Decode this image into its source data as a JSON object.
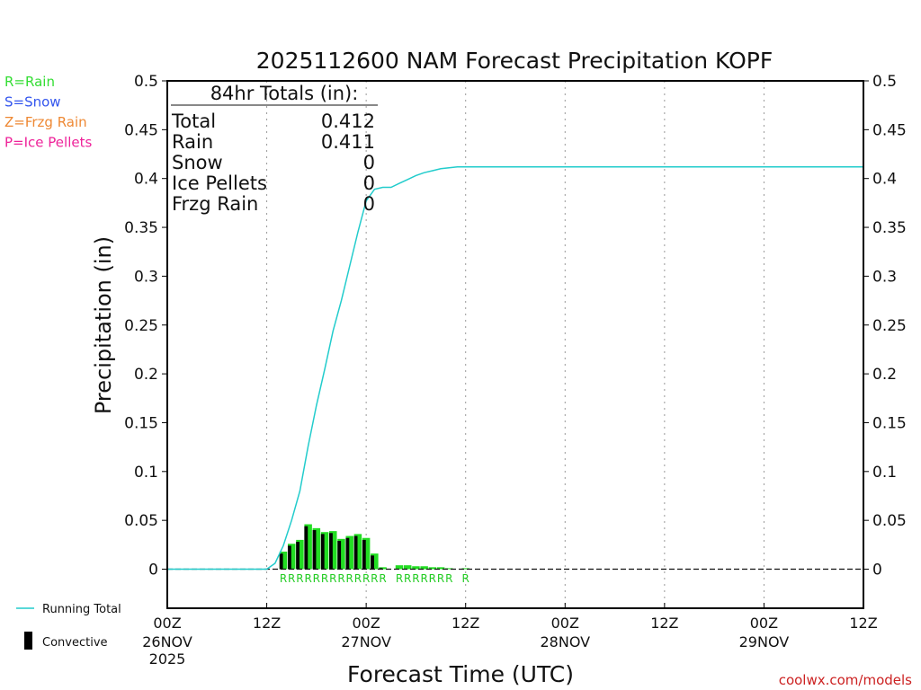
{
  "chart_data": {
    "type": "bar",
    "title": "2025112600 NAM Forecast Precipitation KOPF",
    "ylabel": "Precipitation (in)",
    "xlabel": "Forecast Time (UTC)",
    "ylim": [
      -0.04,
      0.5
    ],
    "xlim_hours": [
      0,
      84
    ],
    "y_ticks": [
      {
        "value": 0.5,
        "label": "0.5"
      },
      {
        "value": 0.45,
        "label": "0.45"
      },
      {
        "value": 0.4,
        "label": "0.4"
      },
      {
        "value": 0.35,
        "label": "0.35"
      },
      {
        "value": 0.3,
        "label": "0.3"
      },
      {
        "value": 0.25,
        "label": "0.25"
      },
      {
        "value": 0.2,
        "label": "0.2"
      },
      {
        "value": 0.15,
        "label": "0.15"
      },
      {
        "value": 0.1,
        "label": "0.1"
      },
      {
        "value": 0.05,
        "label": "0.05"
      },
      {
        "value": 0,
        "label": "0"
      }
    ],
    "x_ticks": [
      {
        "hour": 0,
        "label": "00Z",
        "date": "26NOV",
        "year": "2025"
      },
      {
        "hour": 12,
        "label": "12Z",
        "date": "",
        "year": ""
      },
      {
        "hour": 24,
        "label": "00Z",
        "date": "27NOV",
        "year": ""
      },
      {
        "hour": 36,
        "label": "12Z",
        "date": "",
        "year": ""
      },
      {
        "hour": 48,
        "label": "00Z",
        "date": "28NOV",
        "year": ""
      },
      {
        "hour": 60,
        "label": "12Z",
        "date": "",
        "year": ""
      },
      {
        "hour": 72,
        "label": "00Z",
        "date": "29NOV",
        "year": ""
      },
      {
        "hour": 84,
        "label": "12Z",
        "date": "",
        "year": ""
      }
    ],
    "totals_box": {
      "header": "84hr Totals (in):",
      "rows": [
        {
          "label": "Total",
          "value": "0.412"
        },
        {
          "label": "Rain",
          "value": "0.411"
        },
        {
          "label": "Snow",
          "value": "0"
        },
        {
          "label": "Ice Pellets",
          "value": "0"
        },
        {
          "label": "Frzg Rain",
          "value": "0"
        }
      ]
    },
    "type_legend": [
      {
        "label": "R=Rain",
        "color": "#33dd33"
      },
      {
        "label": "S=Snow",
        "color": "#3355ee"
      },
      {
        "label": "Z=Frzg Rain",
        "color": "#ee8833"
      },
      {
        "label": "P=Ice Pellets",
        "color": "#ee2299"
      }
    ],
    "series_legend": [
      {
        "label": "Running Total",
        "color": "#22cccc"
      },
      {
        "label": "Convective",
        "color": "#000000"
      }
    ],
    "precip_bars": [
      {
        "hour": 14,
        "value": 0.018,
        "convective": 0.016
      },
      {
        "hour": 15,
        "value": 0.026,
        "convective": 0.024
      },
      {
        "hour": 16,
        "value": 0.03,
        "convective": 0.028
      },
      {
        "hour": 17,
        "value": 0.046,
        "convective": 0.044
      },
      {
        "hour": 18,
        "value": 0.042,
        "convective": 0.04
      },
      {
        "hour": 19,
        "value": 0.038,
        "convective": 0.036
      },
      {
        "hour": 20,
        "value": 0.039,
        "convective": 0.037
      },
      {
        "hour": 21,
        "value": 0.031,
        "convective": 0.029
      },
      {
        "hour": 22,
        "value": 0.034,
        "convective": 0.032
      },
      {
        "hour": 23,
        "value": 0.036,
        "convective": 0.034
      },
      {
        "hour": 24,
        "value": 0.032,
        "convective": 0.03
      },
      {
        "hour": 25,
        "value": 0.016,
        "convective": 0.014
      },
      {
        "hour": 26,
        "value": 0.002,
        "convective": 0.001
      },
      {
        "hour": 28,
        "value": 0.004,
        "convective": 0
      },
      {
        "hour": 29,
        "value": 0.004,
        "convective": 0
      },
      {
        "hour": 30,
        "value": 0.003,
        "convective": 0
      },
      {
        "hour": 31,
        "value": 0.003,
        "convective": 0
      },
      {
        "hour": 32,
        "value": 0.002,
        "convective": 0
      },
      {
        "hour": 33,
        "value": 0.002,
        "convective": 0
      },
      {
        "hour": 34,
        "value": 0.001,
        "convective": 0
      },
      {
        "hour": 36,
        "value": 0.001,
        "convective": 0
      }
    ],
    "precip_type_marks": [
      {
        "hour": 14,
        "label": "R"
      },
      {
        "hour": 15,
        "label": "R"
      },
      {
        "hour": 16,
        "label": "R"
      },
      {
        "hour": 17,
        "label": "R"
      },
      {
        "hour": 18,
        "label": "R"
      },
      {
        "hour": 19,
        "label": "R"
      },
      {
        "hour": 20,
        "label": "R"
      },
      {
        "hour": 21,
        "label": "R"
      },
      {
        "hour": 22,
        "label": "R"
      },
      {
        "hour": 23,
        "label": "R"
      },
      {
        "hour": 24,
        "label": "R"
      },
      {
        "hour": 25,
        "label": "R"
      },
      {
        "hour": 26,
        "label": "R"
      },
      {
        "hour": 28,
        "label": "R"
      },
      {
        "hour": 29,
        "label": "R"
      },
      {
        "hour": 30,
        "label": "R"
      },
      {
        "hour": 31,
        "label": "R"
      },
      {
        "hour": 32,
        "label": "R"
      },
      {
        "hour": 33,
        "label": "R"
      },
      {
        "hour": 34,
        "label": "R"
      },
      {
        "hour": 36,
        "label": "R"
      }
    ],
    "running_total": {
      "x": [
        0,
        12,
        13,
        14,
        15,
        16,
        17,
        18,
        19,
        20,
        21,
        22,
        23,
        24,
        25,
        26,
        27,
        28,
        29,
        30,
        31,
        32,
        33,
        34,
        35,
        36,
        48,
        60,
        72,
        84
      ],
      "y": [
        0,
        0,
        0.006,
        0.024,
        0.05,
        0.08,
        0.126,
        0.168,
        0.205,
        0.244,
        0.275,
        0.31,
        0.345,
        0.377,
        0.389,
        0.391,
        0.391,
        0.395,
        0.399,
        0.403,
        0.406,
        0.408,
        0.41,
        0.411,
        0.412,
        0.412,
        0.412,
        0.412,
        0.412,
        0.412
      ]
    }
  },
  "footer": {
    "site": "coolwx.com/models",
    "site_color": "#cc2222"
  }
}
